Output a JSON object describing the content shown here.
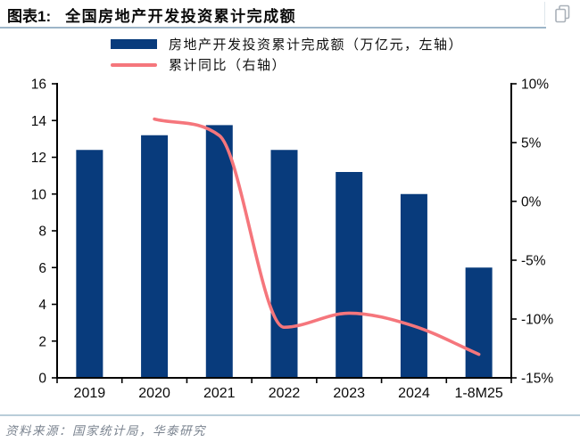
{
  "header": {
    "figure_label": "图表1:",
    "title": "全国房地产开发投资累计完成额"
  },
  "toolbar": {
    "copy_icon": "copy-page-icon"
  },
  "legend": {
    "bar_label": "房地产开发投资累计完成额（万亿元，左轴）",
    "line_label": "累计同比（右轴）"
  },
  "chart_data": {
    "type": "bar+line",
    "title": "全国房地产开发投资累计完成额",
    "categories": [
      "2019",
      "2020",
      "2021",
      "2022",
      "2023",
      "2024",
      "1-8M25"
    ],
    "series": [
      {
        "name": "房地产开发投资累计完成额（万亿元，左轴）",
        "type": "bar",
        "axis": "left",
        "color": "#083B7C",
        "values": [
          12.4,
          13.2,
          13.75,
          12.4,
          11.2,
          10.0,
          6.0
        ]
      },
      {
        "name": "累计同比（右轴）",
        "type": "line",
        "axis": "right",
        "color": "#F5767C",
        "values": [
          null,
          7.0,
          5.6,
          -10.7,
          -9.5,
          -10.6,
          -13.0
        ]
      }
    ],
    "left_axis": {
      "min": 0,
      "max": 16,
      "tick_step": 2,
      "tick_labels": [
        "0",
        "2",
        "4",
        "6",
        "8",
        "10",
        "12",
        "14",
        "16"
      ]
    },
    "right_axis": {
      "min": -15,
      "max": 10,
      "tick_step": 5,
      "tick_labels": [
        "-15%",
        "-10%",
        "-5%",
        "0%",
        "5%",
        "10%"
      ]
    },
    "legend_position": "top",
    "grid": false,
    "axis_color": "#000000"
  },
  "footer": {
    "source": "资料来源：国家统计局，华泰研究"
  }
}
